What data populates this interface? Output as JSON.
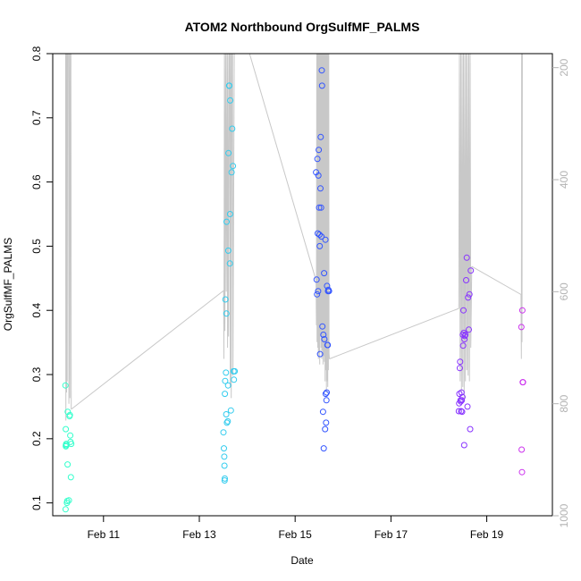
{
  "chart_data": {
    "type": "scatter",
    "title": "ATOM2 Northbound OrgSulfMF_PALMS",
    "xlabel": "Date",
    "ylabel": "OrgSulfMF_PALMS",
    "x_tick_labels": [
      "Feb 11",
      "Feb 13",
      "Feb 15",
      "Feb 17",
      "Feb 19"
    ],
    "x_tick_dates": [
      "2017-02-11",
      "2017-02-13",
      "2017-02-15",
      "2017-02-17",
      "2017-02-19"
    ],
    "xlim": [
      "2017-02-09 22:34",
      "2017-02-20 08:53"
    ],
    "ylim": [
      0.08,
      0.8
    ],
    "y_ticks": [
      0.1,
      0.2,
      0.3,
      0.4,
      0.5,
      0.6,
      0.7,
      0.8
    ],
    "y_tick_labels": [
      "0.1",
      "0.2",
      "0.3",
      "0.4",
      "0.5",
      "0.6",
      "0.7",
      "0.8"
    ],
    "secondary_y": {
      "reversed": true,
      "ylim": [
        1000,
        175
      ],
      "ticks": [
        200,
        400,
        600,
        800,
        1000
      ],
      "tick_labels": [
        "200",
        "400",
        "600",
        "800",
        "1000"
      ],
      "color": "#b3b3b3"
    },
    "grid": false,
    "legend": "none",
    "colors": {
      "series": [
        "#33ffcc",
        "#33ccee",
        "#3355ff",
        "#8833ff",
        "#cc33ee"
      ],
      "secondary_line": "#c8c8c8"
    },
    "series": [
      {
        "color": "#33ffcc",
        "x": [
          "2017-02-10 04:55",
          "2017-02-10 05:00",
          "2017-02-10 05:05",
          "2017-02-10 05:08",
          "2017-02-10 05:10",
          "2017-02-10 05:20",
          "2017-02-10 05:25",
          "2017-02-10 05:40",
          "2017-02-10 05:50",
          "2017-02-10 06:00",
          "2017-02-10 06:05",
          "2017-02-10 06:40",
          "2017-02-10 07:00",
          "2017-02-10 07:10",
          "2017-02-10 07:20",
          "2017-02-10 07:40",
          "2017-02-10 07:30",
          "2017-02-10 07:50"
        ],
        "y": [
          0.283,
          0.09,
          0.215,
          0.19,
          0.188,
          0.192,
          0.19,
          0.1,
          0.103,
          0.16,
          0.242,
          0.104,
          0.235,
          0.237,
          0.205,
          0.14,
          0.195,
          0.192
        ]
      },
      {
        "color": "#33ccee",
        "x": [
          "2017-02-13 12:05",
          "2017-02-13 12:20",
          "2017-02-13 12:30",
          "2017-02-13 12:35",
          "2017-02-13 12:40",
          "2017-02-13 12:45",
          "2017-02-13 12:50",
          "2017-02-13 12:58",
          "2017-02-13 13:05",
          "2017-02-13 13:20",
          "2017-02-13 13:30",
          "2017-02-13 13:35",
          "2017-02-13 13:40",
          "2017-02-13 13:50",
          "2017-02-13 14:15",
          "2017-02-13 14:25",
          "2017-02-13 14:30",
          "2017-02-13 14:35",
          "2017-02-13 14:55",
          "2017-02-13 15:00",
          "2017-02-13 15:20",
          "2017-02-13 15:25",
          "2017-02-13 15:30",
          "2017-02-13 15:50",
          "2017-02-13 16:10",
          "2017-02-13 16:30",
          "2017-02-13 16:50",
          "2017-02-13 17:20",
          "2017-02-13 17:10",
          "2017-02-13 17:45"
        ],
        "y": [
          0.21,
          0.185,
          0.172,
          0.158,
          0.135,
          0.138,
          0.27,
          0.29,
          0.417,
          0.303,
          0.238,
          0.395,
          0.538,
          0.225,
          0.227,
          0.283,
          0.493,
          0.645,
          0.75,
          0.75,
          0.473,
          0.55,
          0.727,
          0.244,
          0.615,
          0.683,
          0.625,
          0.292,
          0.305,
          0.305
        ]
      },
      {
        "color": "#3355ff",
        "x": [
          "2017-02-15 10:30",
          "2017-02-15 10:45",
          "2017-02-15 11:00",
          "2017-02-15 11:10",
          "2017-02-15 11:20",
          "2017-02-15 11:30",
          "2017-02-15 11:40",
          "2017-02-15 11:50",
          "2017-02-15 12:00",
          "2017-02-15 12:10",
          "2017-02-15 12:20",
          "2017-02-15 12:30",
          "2017-02-15 12:40",
          "2017-02-15 12:50",
          "2017-02-15 13:00",
          "2017-02-15 13:10",
          "2017-02-15 13:20",
          "2017-02-15 13:30",
          "2017-02-15 13:40",
          "2017-02-15 14:00",
          "2017-02-15 14:10",
          "2017-02-15 14:20",
          "2017-02-15 14:30",
          "2017-02-15 14:40",
          "2017-02-15 15:00",
          "2017-02-15 15:10",
          "2017-02-15 15:20",
          "2017-02-15 15:30",
          "2017-02-15 15:40",
          "2017-02-15 15:50",
          "2017-02-15 16:00",
          "2017-02-15 16:10",
          "2017-02-15 16:20",
          "2017-02-15 16:30",
          "2017-02-15 16:40",
          "2017-02-15 17:00"
        ],
        "y": [
          0.615,
          0.448,
          0.425,
          0.636,
          0.52,
          0.43,
          0.61,
          0.65,
          0.56,
          0.518,
          0.5,
          0.332,
          0.59,
          0.67,
          0.56,
          0.515,
          0.774,
          0.75,
          0.375,
          0.242,
          0.362,
          0.185,
          0.458,
          0.355,
          0.215,
          0.51,
          0.27,
          0.225,
          0.26,
          0.272,
          0.438,
          0.346,
          0.346,
          0.43,
          0.432,
          0.43
        ]
      },
      {
        "color": "#8833ff",
        "x": [
          "2017-02-18 10:00",
          "2017-02-18 10:10",
          "2017-02-18 10:20",
          "2017-02-18 10:30",
          "2017-02-18 10:40",
          "2017-02-18 10:50",
          "2017-02-18 11:00",
          "2017-02-18 11:10",
          "2017-02-18 11:20",
          "2017-02-18 11:30",
          "2017-02-18 11:40",
          "2017-02-18 11:50",
          "2017-02-18 12:00",
          "2017-02-18 12:10",
          "2017-02-18 12:20",
          "2017-02-18 12:30",
          "2017-02-18 12:40",
          "2017-02-18 12:50",
          "2017-02-18 13:00",
          "2017-02-18 13:20",
          "2017-02-18 13:40",
          "2017-02-18 14:00",
          "2017-02-18 14:20",
          "2017-02-18 14:40",
          "2017-02-18 15:00",
          "2017-02-18 15:20",
          "2017-02-18 15:40",
          "2017-02-18 16:00"
        ],
        "y": [
          0.243,
          0.255,
          0.27,
          0.31,
          0.32,
          0.26,
          0.258,
          0.243,
          0.272,
          0.26,
          0.242,
          0.265,
          0.362,
          0.345,
          0.4,
          0.365,
          0.19,
          0.355,
          0.36,
          0.362,
          0.447,
          0.482,
          0.25,
          0.42,
          0.37,
          0.425,
          0.215,
          0.462
        ]
      },
      {
        "color": "#cc33ee",
        "x": [
          "2017-02-19 17:20",
          "2017-02-19 17:30",
          "2017-02-19 17:40",
          "2017-02-19 17:50",
          "2017-02-19 18:00",
          "2017-02-19 18:10"
        ],
        "y": [
          0.374,
          0.183,
          0.148,
          0.4,
          0.288,
          0.288
        ]
      }
    ],
    "secondary_line_segments": [
      {
        "x": [
          "2017-02-10 05:00",
          "2017-02-10 05:10",
          "2017-02-10 05:20",
          "2017-02-10 05:30",
          "2017-02-10 05:40",
          "2017-02-10 05:50",
          "2017-02-10 06:00",
          "2017-02-10 06:30",
          "2017-02-10 06:40",
          "2017-02-10 07:00",
          "2017-02-10 07:10",
          "2017-02-10 07:30",
          "2017-02-10 07:40",
          "2017-02-10 07:50"
        ],
        "y": [
          175,
          830,
          175,
          780,
          175,
          760,
          175,
          175,
          800,
          175,
          790,
          175,
          175,
          810
        ]
      },
      {
        "x": [
          "2017-02-10 07:50",
          "2017-02-13 12:10"
        ],
        "y": [
          810,
          598
        ]
      },
      {
        "x": [
          "2017-02-13 12:10",
          "2017-02-13 12:20",
          "2017-02-13 12:35",
          "2017-02-13 12:50",
          "2017-02-13 13:10",
          "2017-02-13 13:30",
          "2017-02-13 13:50",
          "2017-02-13 14:10",
          "2017-02-13 14:20",
          "2017-02-13 14:40",
          "2017-02-13 15:00",
          "2017-02-13 15:20",
          "2017-02-13 15:30",
          "2017-02-13 15:50",
          "2017-02-13 16:00",
          "2017-02-13 16:20",
          "2017-02-13 16:40",
          "2017-02-13 16:50",
          "2017-02-13 17:30"
        ],
        "y": [
          598,
          720,
          175,
          670,
          175,
          600,
          175,
          700,
          175,
          680,
          175,
          175,
          770,
          175,
          790,
          175,
          175,
          750,
          175
        ]
      },
      {
        "x": [
          "2017-02-14 01:10",
          "2017-02-15 10:30"
        ],
        "y": [
          175,
          580
        ]
      },
      {
        "x": [
          "2017-02-15 10:30",
          "2017-02-15 10:40",
          "2017-02-15 10:50",
          "2017-02-15 11:00",
          "2017-02-15 11:10",
          "2017-02-15 11:20",
          "2017-02-15 11:30",
          "2017-02-15 11:40",
          "2017-02-15 11:50",
          "2017-02-15 12:00",
          "2017-02-15 12:10",
          "2017-02-15 12:20",
          "2017-02-15 12:30",
          "2017-02-15 12:40",
          "2017-02-15 12:50",
          "2017-02-15 13:00",
          "2017-02-15 13:10",
          "2017-02-15 13:20",
          "2017-02-15 13:30",
          "2017-02-15 13:40",
          "2017-02-15 13:50",
          "2017-02-15 14:00",
          "2017-02-15 14:10",
          "2017-02-15 14:20",
          "2017-02-15 14:30",
          "2017-02-15 14:40",
          "2017-02-15 14:50",
          "2017-02-15 15:00",
          "2017-02-15 15:10",
          "2017-02-15 15:20",
          "2017-02-15 15:30",
          "2017-02-15 15:40",
          "2017-02-15 15:50",
          "2017-02-15 16:00",
          "2017-02-15 16:10",
          "2017-02-15 16:20",
          "2017-02-15 16:30",
          "2017-02-15 16:40",
          "2017-02-15 16:50",
          "2017-02-15 17:00",
          "2017-02-15 17:10"
        ],
        "y": [
          580,
          660,
          175,
          690,
          175,
          700,
          175,
          720,
          175,
          710,
          175,
          730,
          175,
          680,
          175,
          700,
          175,
          720,
          175,
          705,
          175,
          730,
          175,
          715,
          175,
          725,
          175,
          760,
          175,
          740,
          175,
          780,
          175,
          760,
          175,
          770,
          175,
          740,
          175,
          710,
          720
        ]
      },
      {
        "x": [
          "2017-02-15 17:10",
          "2017-02-18 10:00"
        ],
        "y": [
          720,
          630
        ]
      },
      {
        "x": [
          "2017-02-18 10:00",
          "2017-02-18 10:20",
          "2017-02-18 10:40",
          "2017-02-18 11:00",
          "2017-02-18 11:20",
          "2017-02-18 11:40",
          "2017-02-18 12:00",
          "2017-02-18 12:20",
          "2017-02-18 12:40",
          "2017-02-18 13:00",
          "2017-02-18 13:20",
          "2017-02-18 13:40",
          "2017-02-18 14:00",
          "2017-02-18 14:20",
          "2017-02-18 14:40",
          "2017-02-18 15:00",
          "2017-02-18 15:20",
          "2017-02-18 15:40",
          "2017-02-18 16:00",
          "2017-02-18 16:30"
        ],
        "y": [
          630,
          175,
          760,
          175,
          780,
          175,
          770,
          175,
          790,
          175,
          760,
          175,
          740,
          175,
          750,
          175,
          760,
          175,
          700,
          555
        ]
      },
      {
        "x": [
          "2017-02-18 16:30",
          "2017-02-19 17:10"
        ],
        "y": [
          555,
          605
        ]
      },
      {
        "x": [
          "2017-02-19 17:10",
          "2017-02-19 17:20",
          "2017-02-19 17:30",
          "2017-02-19 17:40",
          "2017-02-19 17:50"
        ],
        "y": [
          605,
          720,
          175,
          690,
          175
        ]
      }
    ]
  }
}
